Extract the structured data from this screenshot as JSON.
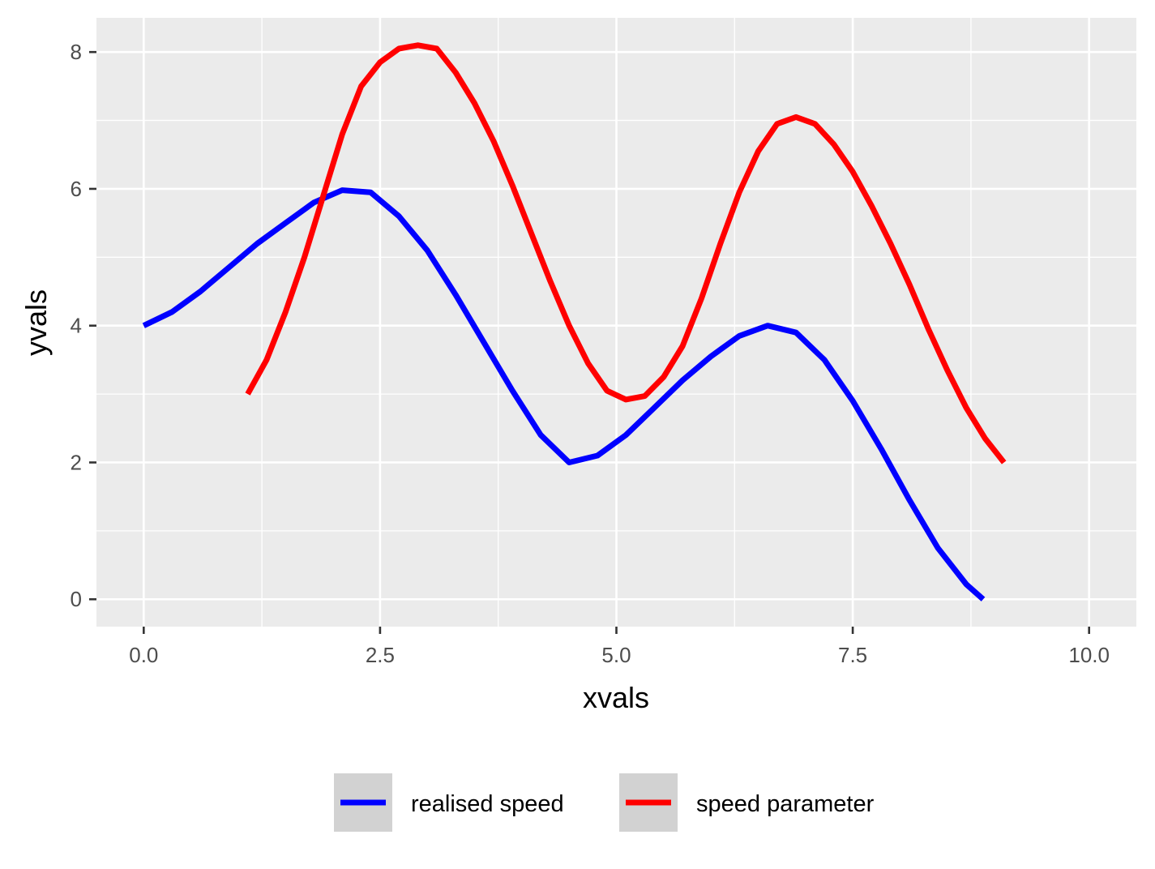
{
  "chart_data": {
    "type": "line",
    "xlabel": "xvals",
    "ylabel": "yvals",
    "xlim": [
      -0.5,
      10.5
    ],
    "ylim": [
      -0.4,
      8.5
    ],
    "x_ticks": [
      0,
      2.5,
      5,
      7.5,
      10
    ],
    "x_tick_labels": [
      "0.0",
      "2.5",
      "5.0",
      "7.5",
      "10.0"
    ],
    "y_ticks": [
      0,
      2,
      4,
      6,
      8
    ],
    "y_tick_labels": [
      "0",
      "2",
      "4",
      "6",
      "8"
    ],
    "grid": true,
    "legend_position": "bottom",
    "series": [
      {
        "name": "realised speed",
        "color": "#0000ff",
        "points": [
          [
            0.0,
            4.0
          ],
          [
            0.3,
            4.2
          ],
          [
            0.6,
            4.5
          ],
          [
            0.9,
            4.85
          ],
          [
            1.2,
            5.2
          ],
          [
            1.5,
            5.5
          ],
          [
            1.8,
            5.8
          ],
          [
            2.1,
            5.98
          ],
          [
            2.4,
            5.95
          ],
          [
            2.7,
            5.6
          ],
          [
            3.0,
            5.1
          ],
          [
            3.3,
            4.45
          ],
          [
            3.6,
            3.75
          ],
          [
            3.9,
            3.05
          ],
          [
            4.2,
            2.4
          ],
          [
            4.5,
            2.0
          ],
          [
            4.8,
            2.1
          ],
          [
            5.1,
            2.4
          ],
          [
            5.4,
            2.8
          ],
          [
            5.7,
            3.2
          ],
          [
            6.0,
            3.55
          ],
          [
            6.3,
            3.85
          ],
          [
            6.6,
            4.0
          ],
          [
            6.9,
            3.9
          ],
          [
            7.2,
            3.5
          ],
          [
            7.5,
            2.9
          ],
          [
            7.8,
            2.2
          ],
          [
            8.1,
            1.45
          ],
          [
            8.4,
            0.75
          ],
          [
            8.7,
            0.22
          ],
          [
            8.88,
            0.0
          ]
        ]
      },
      {
        "name": "speed parameter",
        "color": "#ff0000",
        "points": [
          [
            1.1,
            3.0
          ],
          [
            1.3,
            3.5
          ],
          [
            1.5,
            4.2
          ],
          [
            1.7,
            5.0
          ],
          [
            1.9,
            5.9
          ],
          [
            2.1,
            6.8
          ],
          [
            2.3,
            7.5
          ],
          [
            2.5,
            7.85
          ],
          [
            2.7,
            8.05
          ],
          [
            2.9,
            8.1
          ],
          [
            3.1,
            8.05
          ],
          [
            3.3,
            7.7
          ],
          [
            3.5,
            7.25
          ],
          [
            3.7,
            6.7
          ],
          [
            3.9,
            6.05
          ],
          [
            4.1,
            5.35
          ],
          [
            4.3,
            4.65
          ],
          [
            4.5,
            4.0
          ],
          [
            4.7,
            3.45
          ],
          [
            4.9,
            3.05
          ],
          [
            5.1,
            2.92
          ],
          [
            5.3,
            2.97
          ],
          [
            5.5,
            3.25
          ],
          [
            5.7,
            3.7
          ],
          [
            5.9,
            4.4
          ],
          [
            6.1,
            5.2
          ],
          [
            6.3,
            5.95
          ],
          [
            6.5,
            6.55
          ],
          [
            6.7,
            6.95
          ],
          [
            6.9,
            7.05
          ],
          [
            7.1,
            6.95
          ],
          [
            7.3,
            6.65
          ],
          [
            7.5,
            6.25
          ],
          [
            7.7,
            5.75
          ],
          [
            7.9,
            5.2
          ],
          [
            8.1,
            4.6
          ],
          [
            8.3,
            3.95
          ],
          [
            8.5,
            3.35
          ],
          [
            8.7,
            2.8
          ],
          [
            8.9,
            2.35
          ],
          [
            9.1,
            2.0
          ]
        ]
      }
    ]
  }
}
